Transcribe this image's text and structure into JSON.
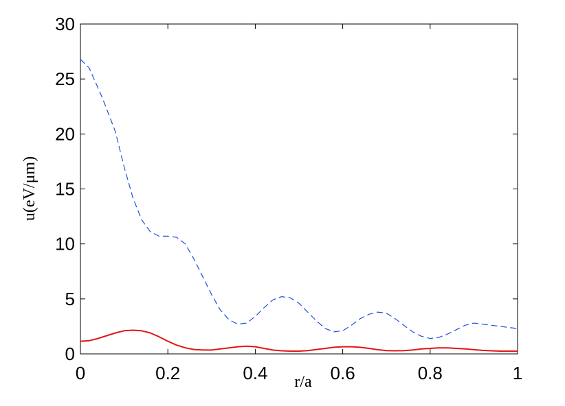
{
  "chart_data": {
    "type": "line",
    "title": "",
    "xlabel": "r/a",
    "ylabel": "u(eV/μm)",
    "xlim": [
      0,
      1
    ],
    "ylim": [
      0,
      30
    ],
    "xticks": [
      0,
      0.2,
      0.4,
      0.6,
      0.8,
      1
    ],
    "xtick_labels": [
      "0",
      "0.2",
      "0.4",
      "0.6",
      "0.8",
      "1"
    ],
    "yticks": [
      0,
      5,
      10,
      15,
      20,
      25,
      30
    ],
    "ytick_labels": [
      "0",
      "5",
      "10",
      "15",
      "20",
      "25",
      "30"
    ],
    "grid": false,
    "legend": "none",
    "series": [
      {
        "style": "dashed",
        "color": "#1f4fe0",
        "x": [
          0.0,
          0.02,
          0.05,
          0.08,
          0.1,
          0.12,
          0.14,
          0.16,
          0.18,
          0.2,
          0.22,
          0.24,
          0.26,
          0.28,
          0.3,
          0.32,
          0.34,
          0.36,
          0.38,
          0.4,
          0.42,
          0.44,
          0.46,
          0.48,
          0.5,
          0.52,
          0.54,
          0.56,
          0.58,
          0.6,
          0.62,
          0.64,
          0.66,
          0.68,
          0.7,
          0.72,
          0.74,
          0.76,
          0.78,
          0.8,
          0.82,
          0.84,
          0.86,
          0.88,
          0.9,
          0.92,
          0.94,
          0.96,
          0.98,
          1.0
        ],
        "y": [
          26.8,
          26.0,
          23.3,
          20.2,
          17.0,
          14.2,
          12.2,
          11.1,
          10.7,
          10.7,
          10.6,
          10.0,
          8.6,
          7.0,
          5.4,
          4.0,
          3.1,
          2.7,
          2.8,
          3.4,
          4.2,
          4.9,
          5.2,
          5.1,
          4.6,
          3.8,
          3.0,
          2.3,
          2.0,
          2.1,
          2.6,
          3.2,
          3.6,
          3.8,
          3.7,
          3.2,
          2.6,
          2.0,
          1.6,
          1.4,
          1.5,
          1.8,
          2.2,
          2.6,
          2.8,
          2.7,
          2.6,
          2.5,
          2.4,
          2.3
        ]
      },
      {
        "style": "solid",
        "color": "#e41414",
        "x": [
          0.0,
          0.02,
          0.04,
          0.06,
          0.08,
          0.1,
          0.12,
          0.14,
          0.16,
          0.18,
          0.2,
          0.22,
          0.24,
          0.26,
          0.28,
          0.3,
          0.32,
          0.34,
          0.36,
          0.38,
          0.4,
          0.42,
          0.44,
          0.46,
          0.48,
          0.5,
          0.52,
          0.54,
          0.56,
          0.58,
          0.6,
          0.62,
          0.64,
          0.66,
          0.68,
          0.7,
          0.72,
          0.74,
          0.76,
          0.78,
          0.8,
          0.82,
          0.84,
          0.86,
          0.88,
          0.9,
          0.92,
          0.94,
          0.96,
          0.98,
          1.0
        ],
        "y": [
          1.15,
          1.2,
          1.4,
          1.65,
          1.9,
          2.1,
          2.15,
          2.1,
          1.9,
          1.55,
          1.15,
          0.8,
          0.55,
          0.4,
          0.35,
          0.35,
          0.45,
          0.55,
          0.65,
          0.7,
          0.65,
          0.5,
          0.35,
          0.28,
          0.25,
          0.25,
          0.3,
          0.4,
          0.5,
          0.6,
          0.65,
          0.65,
          0.6,
          0.5,
          0.38,
          0.3,
          0.28,
          0.3,
          0.35,
          0.45,
          0.5,
          0.55,
          0.55,
          0.5,
          0.45,
          0.38,
          0.32,
          0.28,
          0.25,
          0.25,
          0.25
        ]
      }
    ]
  }
}
